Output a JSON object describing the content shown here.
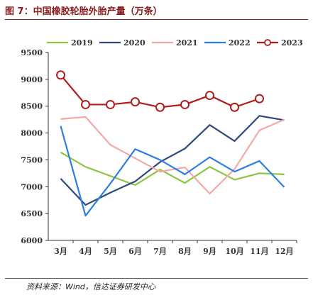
{
  "header": {
    "title": "图 7：中国橡胶轮胎外胎产量（万条）"
  },
  "footer": {
    "source": "资料来源：Wind，信达证券研发中心"
  },
  "chart_data": {
    "type": "line",
    "title": "中国橡胶轮胎外胎产量（万条）",
    "xlabel": "",
    "ylabel": "",
    "categories": [
      "3月",
      "4月",
      "5月",
      "6月",
      "7月",
      "8月",
      "9月",
      "10月",
      "11月",
      "12月"
    ],
    "ylim": [
      6000,
      9500
    ],
    "yticks": [
      6000,
      6500,
      7000,
      7500,
      8000,
      8500,
      9000,
      9500
    ],
    "grid": false,
    "legend_position": "top",
    "series": [
      {
        "name": "2019",
        "color": "#8cc63f",
        "marker": "none",
        "values": [
          7640,
          7370,
          7200,
          7030,
          7320,
          7070,
          7370,
          7130,
          7250,
          7230
        ]
      },
      {
        "name": "2020",
        "color": "#2f4a7a",
        "marker": "none",
        "values": [
          7150,
          6660,
          6890,
          7100,
          7460,
          7710,
          8150,
          7850,
          8320,
          8240
        ]
      },
      {
        "name": "2021",
        "color": "#f2a9a9",
        "marker": "none",
        "values": [
          8260,
          8300,
          7780,
          7530,
          7280,
          7360,
          6870,
          7330,
          8050,
          8250
        ]
      },
      {
        "name": "2022",
        "color": "#2e7de1",
        "marker": "none",
        "values": [
          8130,
          6460,
          7060,
          7700,
          7500,
          7230,
          7550,
          7280,
          7480,
          6990
        ]
      },
      {
        "name": "2023",
        "color": "#b01c1c",
        "marker": "circle",
        "values": [
          9080,
          8530,
          8530,
          8580,
          8480,
          8530,
          8700,
          8480,
          8640,
          null
        ]
      }
    ]
  }
}
